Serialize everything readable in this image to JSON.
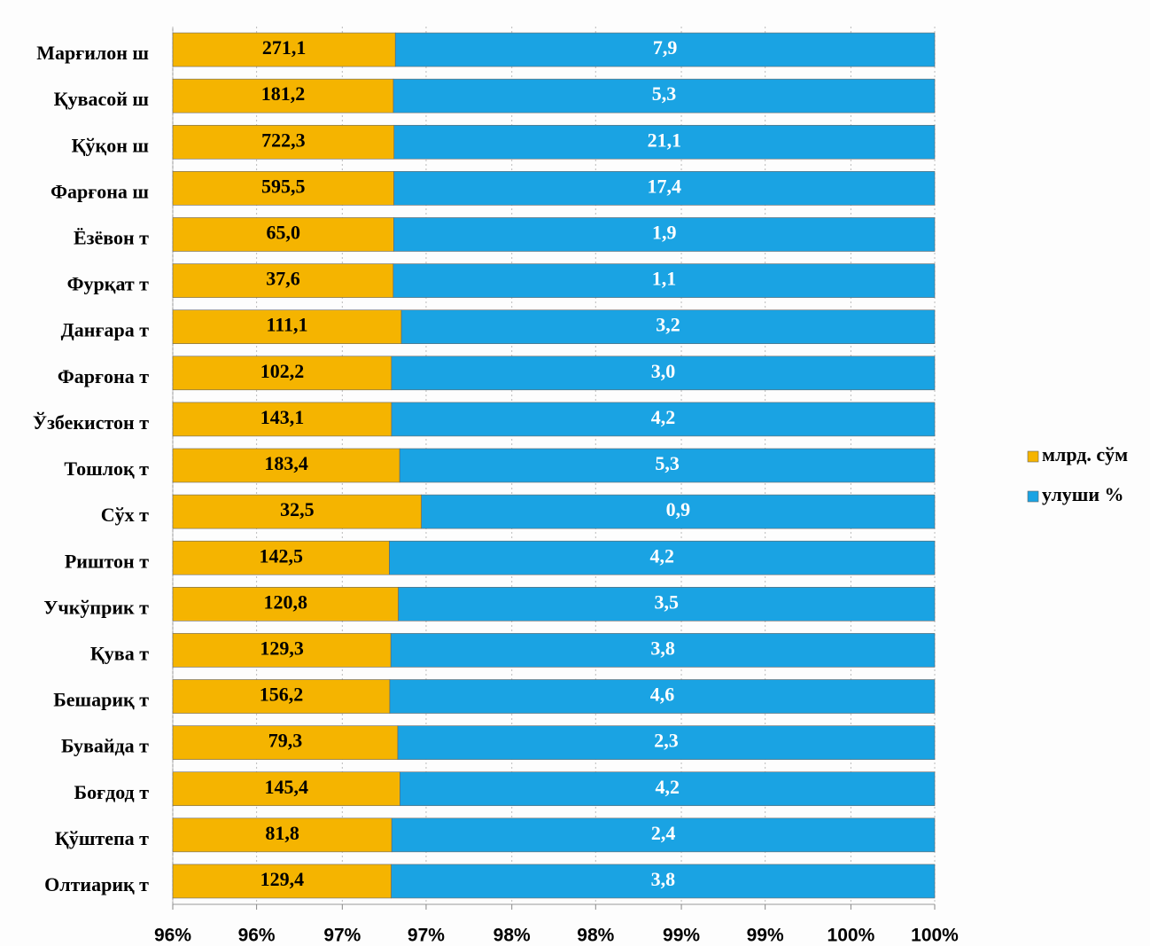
{
  "chart_data": {
    "type": "bar_stacked_percent_horizontal",
    "categories": [
      "Марғилон ш",
      "Қувасой ш",
      "Қўқон ш",
      "Фарғона ш",
      "Ёзёвон т",
      "Фурқат т",
      "Данғара т",
      "Фарғона т",
      "Ўзбекистон т",
      "Тошлоқ т",
      "Сўх т",
      "Риштон т",
      "Учкўприк т",
      "Қува т",
      "Бешариқ т",
      "Бувайда т",
      "Боғдод т",
      "Қўштепа т",
      "Олтиариқ т"
    ],
    "series": [
      {
        "name": "млрд. сўм",
        "color": "#f5b400",
        "values": [
          271.1,
          181.2,
          722.3,
          595.5,
          65.0,
          37.6,
          111.1,
          102.2,
          143.1,
          183.4,
          32.5,
          142.5,
          120.8,
          129.3,
          156.2,
          79.3,
          145.4,
          81.8,
          129.4
        ],
        "value_labels": [
          "271,1",
          "181,2",
          "722,3",
          "595,5",
          "65,0",
          "37,6",
          "111,1",
          "102,2",
          "143,1",
          "183,4",
          "32,5",
          "142,5",
          "120,8",
          "129,3",
          "156,2",
          "79,3",
          "145,4",
          "81,8",
          "129,4"
        ]
      },
      {
        "name": "улуши %",
        "color": "#1aa3e3",
        "values": [
          7.9,
          5.3,
          21.1,
          17.4,
          1.9,
          1.1,
          3.2,
          3.0,
          4.2,
          5.3,
          0.9,
          4.2,
          3.5,
          3.8,
          4.6,
          2.3,
          4.2,
          2.4,
          3.8
        ],
        "value_labels": [
          "7,9",
          "5,3",
          "21,1",
          "17,4",
          "1,9",
          "1,1",
          "3,2",
          "3,0",
          "4,2",
          "5,3",
          "0,9",
          "4,2",
          "3,5",
          "3,8",
          "4,6",
          "2,3",
          "4,2",
          "2,4",
          "3,8"
        ]
      }
    ],
    "xlim": [
      96,
      100
    ],
    "xticks": [
      {
        "value": 96,
        "label": "96%"
      },
      {
        "value": 96.44,
        "label": "96%"
      },
      {
        "value": 96.89,
        "label": "97%"
      },
      {
        "value": 97.33,
        "label": "97%"
      },
      {
        "value": 97.78,
        "label": "98%"
      },
      {
        "value": 98.22,
        "label": "98%"
      },
      {
        "value": 98.67,
        "label": "99%"
      },
      {
        "value": 99.11,
        "label": "99%"
      },
      {
        "value": 99.56,
        "label": "100%"
      },
      {
        "value": 100,
        "label": "100%"
      }
    ],
    "grid": true,
    "legend": "right"
  }
}
